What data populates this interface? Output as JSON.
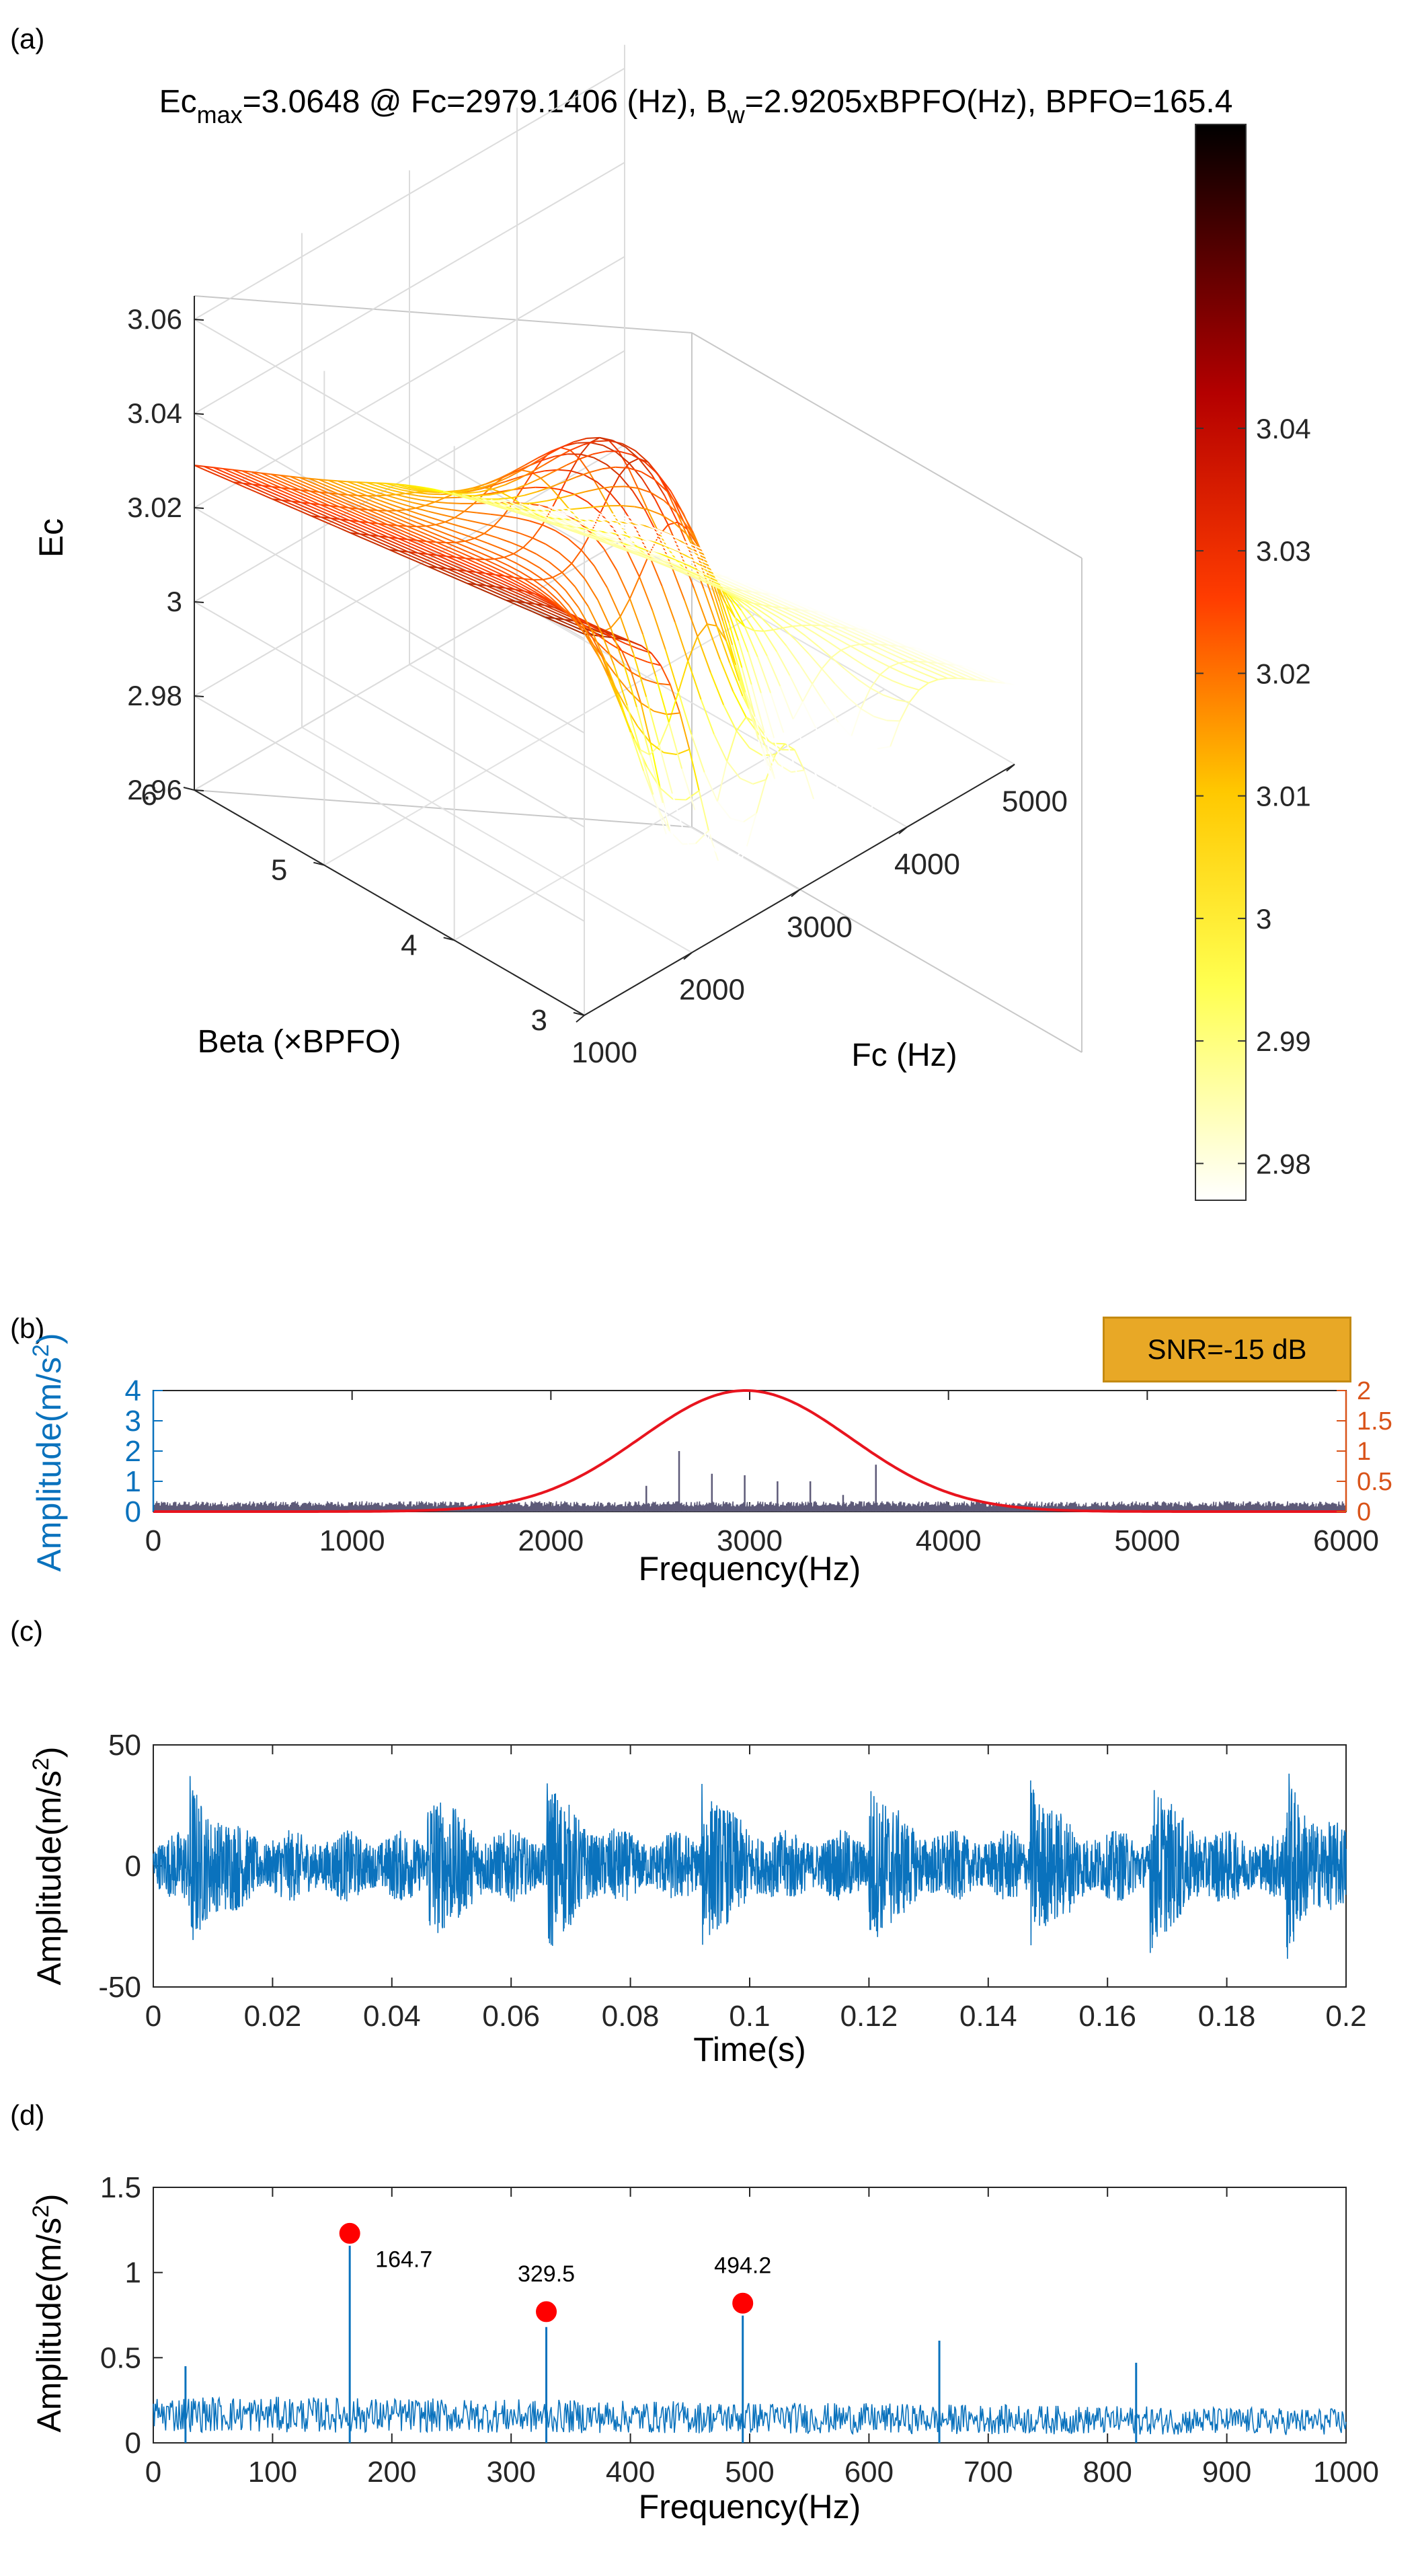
{
  "chart_data": [
    {
      "panel": "(a)",
      "type": "surface",
      "title": "Ec_max=3.0648 @ Fc=2979.1406 (Hz), B_w=2.9205xBPFO(Hz), BPFO=165.4",
      "title_parts": {
        "p1": "Ec",
        "p1_sub": "max",
        "p2": "=3.0648 @ Fc=2979.1406 (Hz), B",
        "p2_sub": "w",
        "p3": "=2.9205xBPFO(Hz), BPFO=165.4"
      },
      "zlabel": "Ec",
      "xlabel": "Fc (Hz)",
      "ylabel": "Beta (×BPFO)",
      "x_ticks": [
        1000,
        2000,
        3000,
        4000,
        5000
      ],
      "y_ticks": [
        3,
        4,
        5,
        6
      ],
      "z_ticks": [
        2.96,
        2.98,
        3,
        3.02,
        3.04,
        3.06
      ],
      "z_tick_labels": [
        "2.96",
        "2.98",
        "3",
        "3.02",
        "3.04",
        "3.06"
      ],
      "zlim": [
        2.96,
        3.065
      ],
      "colorbar": {
        "ticks": [
          2.98,
          2.99,
          3,
          3.01,
          3.02,
          3.03,
          3.04
        ],
        "labels": [
          "2.98",
          "2.99",
          "3",
          "3.01",
          "3.02",
          "3.03",
          "3.04"
        ],
        "range": [
          2.977,
          3.0648
        ],
        "colormap": "hot"
      },
      "peak": {
        "Fc": 2979.1406,
        "beta": 2.9205,
        "Ec": 3.0648
      }
    },
    {
      "panel": "(b)",
      "type": "line",
      "xlabel": "Frequency(Hz)",
      "ylabel": "Amplitude(m/s2)",
      "xlim": [
        0,
        6000
      ],
      "x_ticks": [
        0,
        1000,
        2000,
        3000,
        4000,
        5000,
        6000
      ],
      "ylim": [
        0,
        4
      ],
      "y_ticks": [
        0,
        1,
        2,
        3,
        4
      ],
      "y2lim": [
        0,
        2
      ],
      "y2_ticks": [
        0,
        0.5,
        1,
        1.5,
        2
      ],
      "y2_tick_labels": [
        "0",
        "0.5",
        "1",
        "1.5",
        "2"
      ],
      "annotation": "SNR=-15 dB",
      "noise_level": 0.3,
      "spikes": [
        {
          "x": 2480,
          "y": 0.85
        },
        {
          "x": 2645,
          "y": 2.0
        },
        {
          "x": 2810,
          "y": 1.25
        },
        {
          "x": 2975,
          "y": 1.2
        },
        {
          "x": 3140,
          "y": 1.0
        },
        {
          "x": 3305,
          "y": 1.0
        },
        {
          "x": 3635,
          "y": 1.55
        },
        {
          "x": 3470,
          "y": 0.55
        }
      ],
      "filter_curve": {
        "center": 2979.1406,
        "sigma": 530,
        "peak": 2,
        "color": "#e8141e"
      },
      "series_color": "#5d5a78",
      "left_axis_color": "#0a72bd",
      "right_axis_color": "#d95319"
    },
    {
      "panel": "(c)",
      "type": "line",
      "xlabel": "Time(s)",
      "ylabel": "Amplitude(m/s2)",
      "xlim": [
        0,
        0.2
      ],
      "x_ticks": [
        0,
        0.02,
        0.04,
        0.06,
        0.08,
        0.1,
        0.12,
        0.14,
        0.16,
        0.18,
        0.2
      ],
      "x_tick_labels": [
        "0",
        "0.02",
        "0.04",
        "0.06",
        "0.08",
        "0.1",
        "0.12",
        "0.14",
        "0.16",
        "0.18",
        "0.2"
      ],
      "ylim": [
        -50,
        50
      ],
      "y_ticks": [
        -50,
        0,
        50
      ],
      "bursts": [
        0.006,
        0.046,
        0.066,
        0.092,
        0.12,
        0.147,
        0.167,
        0.19
      ],
      "series_color": "#0a72bd"
    },
    {
      "panel": "(d)",
      "type": "line",
      "xlabel": "Frequency(Hz)",
      "ylabel": "Amplitude(m/s2)",
      "xlim": [
        0,
        1000
      ],
      "x_ticks": [
        0,
        100,
        200,
        300,
        400,
        500,
        600,
        700,
        800,
        900,
        1000
      ],
      "ylim": [
        0,
        1.5
      ],
      "y_ticks": [
        0,
        0.5,
        1,
        1.5
      ],
      "y_tick_labels": [
        "0",
        "0.5",
        "1",
        "1.5"
      ],
      "spikes": [
        {
          "x": 164.7,
          "y": 1.18
        },
        {
          "x": 329.5,
          "y": 0.68
        },
        {
          "x": 494.2,
          "y": 0.75
        },
        {
          "x": 659,
          "y": 0.6
        },
        {
          "x": 824,
          "y": 0.47
        },
        {
          "x": 27,
          "y": 0.45
        }
      ],
      "markers": [
        {
          "x": 164.7,
          "y": 1.23,
          "label": "164.7"
        },
        {
          "x": 329.5,
          "y": 0.77,
          "label": "329.5"
        },
        {
          "x": 494.2,
          "y": 0.82,
          "label": "494.2"
        }
      ],
      "series_color": "#0a72bd",
      "marker_color": "#ff0000"
    }
  ],
  "labels": {
    "a": "(a)",
    "b": "(b)",
    "c": "(c)",
    "d": "(d)",
    "amp_unit_prefix": "Amplitude(m/s",
    "amp_unit_sup": "2",
    "amp_unit_suffix": ")"
  }
}
